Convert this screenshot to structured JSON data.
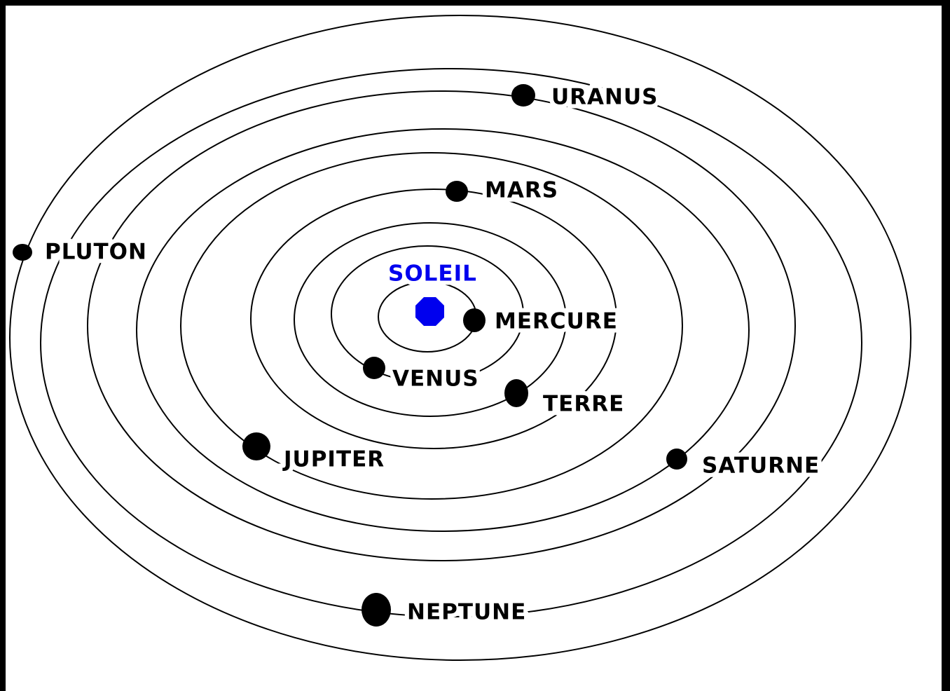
{
  "sun": {
    "label": "SOLEIL"
  },
  "planets": [
    {
      "label": "MERCURE"
    },
    {
      "label": "VENUS"
    },
    {
      "label": "TERRE"
    },
    {
      "label": "MARS"
    },
    {
      "label": "JUPITER"
    },
    {
      "label": "SATURNE"
    },
    {
      "label": "URANUS"
    },
    {
      "label": "NEPTUNE"
    },
    {
      "label": "PLUTON"
    }
  ]
}
